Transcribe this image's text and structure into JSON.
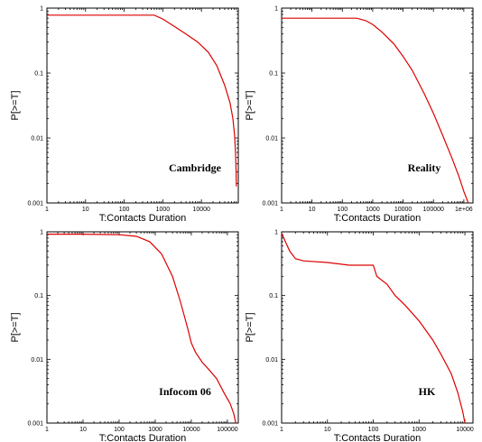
{
  "chart_data": [
    {
      "type": "line",
      "title": "",
      "annotation": "Cambridge",
      "xlabel": "T:Contacts Duration",
      "ylabel": "P[>=T]",
      "xscale": "log",
      "yscale": "log",
      "xlim": [
        1,
        90000
      ],
      "ylim": [
        0.001,
        1
      ],
      "x_ticks": [
        "1",
        "10",
        "100",
        "1000",
        "10000"
      ],
      "y_ticks": [
        "1",
        "0.1",
        "0.01",
        "0.001"
      ],
      "color": "#dd0000",
      "grid": false,
      "series": [
        {
          "x": [
            1,
            200,
            600,
            1000,
            2000,
            4000,
            8000,
            15000,
            25000,
            40000,
            55000,
            65000,
            72000,
            76000,
            79000,
            80000
          ],
          "y": [
            0.78,
            0.78,
            0.78,
            0.68,
            0.52,
            0.4,
            0.3,
            0.21,
            0.13,
            0.065,
            0.035,
            0.02,
            0.011,
            0.006,
            0.003,
            0.0018
          ]
        }
      ]
    },
    {
      "type": "line",
      "title": "",
      "annotation": "Reality",
      "xlabel": "T:Contacts Duration",
      "ylabel": "P[>=T]",
      "xscale": "log",
      "yscale": "log",
      "xlim": [
        1,
        2000000
      ],
      "ylim": [
        0.001,
        1
      ],
      "x_ticks": [
        "1",
        "10",
        "100",
        "1000",
        "10000",
        "100000",
        "1e+06"
      ],
      "y_ticks": [
        "1",
        "0.1",
        "0.01",
        "0.001"
      ],
      "color": "#dd0000",
      "grid": false,
      "series": [
        {
          "x": [
            1,
            100,
            300,
            600,
            1000,
            2000,
            5000,
            10000,
            20000,
            50000,
            100000,
            200000,
            400000,
            700000,
            1000000,
            1400000
          ],
          "y": [
            0.7,
            0.7,
            0.7,
            0.64,
            0.56,
            0.43,
            0.28,
            0.18,
            0.11,
            0.048,
            0.024,
            0.011,
            0.005,
            0.0025,
            0.0015,
            0.001
          ]
        }
      ]
    },
    {
      "type": "line",
      "title": "",
      "annotation": "Infocom 06",
      "xlabel": "T:Contacts Duration",
      "ylabel": "P[>=T]",
      "xscale": "log",
      "yscale": "log",
      "xlim": [
        1,
        200000
      ],
      "ylim": [
        0.001,
        1
      ],
      "x_ticks": [
        "1",
        "10",
        "100",
        "1000",
        "10000",
        "100000"
      ],
      "y_ticks": [
        "1",
        "0.1",
        "0.01",
        "0.001"
      ],
      "color": "#dd0000",
      "grid": false,
      "series": [
        {
          "x": [
            1,
            10,
            100,
            300,
            700,
            1500,
            3000,
            5000,
            8000,
            10000,
            13000,
            20000,
            30000,
            50000,
            80000,
            120000,
            150000,
            170000
          ],
          "y": [
            0.92,
            0.92,
            0.9,
            0.85,
            0.7,
            0.45,
            0.2,
            0.08,
            0.03,
            0.018,
            0.013,
            0.009,
            0.007,
            0.005,
            0.003,
            0.002,
            0.0014,
            0.001
          ]
        }
      ]
    },
    {
      "type": "line",
      "title": "",
      "annotation": "HK",
      "xlabel": "T:Contacts Duration",
      "ylabel": "P[>=T]",
      "xscale": "log",
      "yscale": "log",
      "xlim": [
        1,
        15000
      ],
      "ylim": [
        0.001,
        1
      ],
      "x_ticks": [
        "1",
        "10",
        "100",
        "1000",
        "10000"
      ],
      "y_ticks": [
        "1",
        "0.1",
        "0.01",
        "0.001"
      ],
      "color": "#dd0000",
      "grid": false,
      "series": [
        {
          "x": [
            1,
            1.5,
            2,
            3,
            10,
            30,
            100,
            120,
            200,
            300,
            500,
            1000,
            2000,
            3000,
            5000,
            7000,
            9000,
            10000
          ],
          "y": [
            0.95,
            0.5,
            0.38,
            0.35,
            0.33,
            0.3,
            0.3,
            0.2,
            0.15,
            0.1,
            0.07,
            0.04,
            0.02,
            0.012,
            0.006,
            0.003,
            0.0015,
            0.001
          ]
        }
      ]
    }
  ]
}
